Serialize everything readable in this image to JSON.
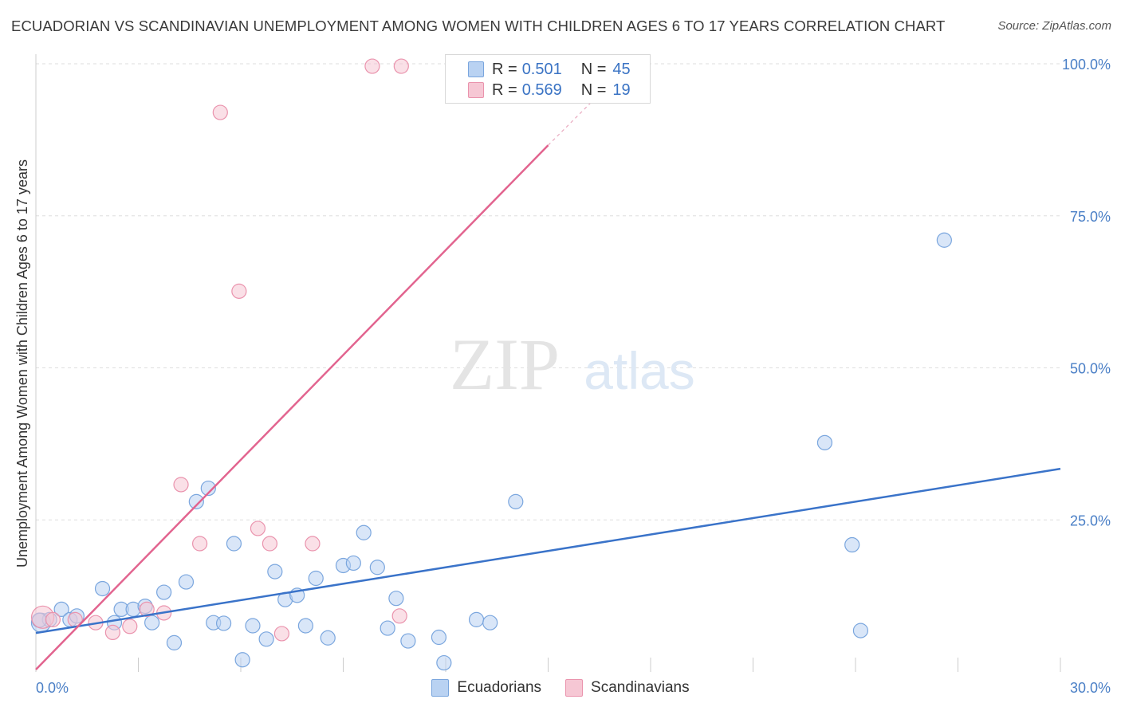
{
  "header": {
    "title": "ECUADORIAN VS SCANDINAVIAN UNEMPLOYMENT AMONG WOMEN WITH CHILDREN AGES 6 TO 17 YEARS CORRELATION CHART",
    "source": "Source: ZipAtlas.com"
  },
  "watermark": {
    "zip": "ZIP",
    "atlas": "atlas"
  },
  "colors": {
    "blue_fill": "#b9d2f2",
    "blue_stroke": "#7aa6de",
    "blue_line": "#3a73c9",
    "pink_fill": "#f6c7d4",
    "pink_stroke": "#ea93ad",
    "pink_line": "#e2648f",
    "grid": "#dedede",
    "axis_text": "#4a7fc6"
  },
  "legend": {
    "r_label": "R =",
    "n_label": "N =",
    "rows": [
      {
        "r": "0.501",
        "n": "45"
      },
      {
        "r": "0.569",
        "n": "19"
      }
    ]
  },
  "chart_data": {
    "type": "scatter",
    "title": "ECUADORIAN VS SCANDINAVIAN UNEMPLOYMENT AMONG WOMEN WITH CHILDREN AGES 6 TO 17 YEARS CORRELATION CHART",
    "xlabel": "",
    "ylabel": "Unemployment Among Women with Children Ages 6 to 17 years",
    "xlim": [
      0,
      30
    ],
    "ylim": [
      0,
      100
    ],
    "x_tick_labels": [
      "0.0%",
      "30.0%"
    ],
    "y_ticks": [
      25,
      50,
      75,
      100
    ],
    "y_tick_labels": [
      "25.0%",
      "50.0%",
      "75.0%",
      "100.0%"
    ],
    "legend_position": "top-center",
    "series": [
      {
        "name": "Ecuadorians",
        "r": 0.501,
        "n": 45,
        "trend": {
          "x0": 0,
          "y0": 6.4,
          "x1": 30,
          "y1": 33.4
        },
        "points": [
          [
            0.15,
            8.1
          ],
          [
            0.4,
            8.6
          ],
          [
            0.75,
            10.3
          ],
          [
            1.0,
            8.6
          ],
          [
            1.2,
            9.2
          ],
          [
            1.95,
            13.7
          ],
          [
            2.3,
            8.1
          ],
          [
            2.5,
            10.3
          ],
          [
            2.85,
            10.3
          ],
          [
            3.2,
            10.8
          ],
          [
            3.4,
            8.1
          ],
          [
            3.75,
            13.1
          ],
          [
            4.05,
            4.8
          ],
          [
            4.4,
            14.8
          ],
          [
            4.7,
            28.0
          ],
          [
            5.05,
            30.2
          ],
          [
            5.2,
            8.1
          ],
          [
            5.5,
            8.0
          ],
          [
            5.8,
            21.1
          ],
          [
            6.05,
            2.0
          ],
          [
            6.35,
            7.6
          ],
          [
            6.75,
            5.4
          ],
          [
            7.0,
            16.5
          ],
          [
            7.3,
            11.9
          ],
          [
            7.65,
            12.6
          ],
          [
            7.9,
            7.6
          ],
          [
            8.2,
            15.4
          ],
          [
            8.55,
            5.6
          ],
          [
            9.0,
            17.5
          ],
          [
            9.3,
            17.9
          ],
          [
            9.6,
            22.9
          ],
          [
            10.0,
            17.2
          ],
          [
            10.3,
            7.2
          ],
          [
            10.55,
            12.1
          ],
          [
            10.9,
            5.1
          ],
          [
            11.8,
            5.7
          ],
          [
            11.95,
            1.5
          ],
          [
            12.9,
            8.6
          ],
          [
            13.3,
            8.1
          ],
          [
            14.05,
            28.0
          ],
          [
            23.1,
            37.7
          ],
          [
            23.9,
            20.9
          ],
          [
            24.15,
            6.8
          ],
          [
            26.6,
            71.0
          ],
          [
            0.1,
            8.5
          ]
        ],
        "point_radius": [
          12,
          9,
          9,
          9,
          9,
          9,
          9,
          9,
          9,
          9,
          9,
          9,
          9,
          9,
          9,
          9,
          9,
          9,
          9,
          9,
          9,
          9,
          9,
          9,
          9,
          9,
          9,
          9,
          9,
          9,
          9,
          9,
          9,
          9,
          9,
          9,
          9,
          9,
          9,
          9,
          9,
          9,
          9,
          9,
          9
        ]
      },
      {
        "name": "Scandinavians",
        "r": 0.569,
        "n": 19,
        "trend": {
          "x0": 0,
          "y0": 0.4,
          "x1": 15,
          "y1": 86.6,
          "dash_to_x": 16.5,
          "dash_to_y": 95.0
        },
        "points": [
          [
            0.2,
            9.0
          ],
          [
            0.5,
            8.6
          ],
          [
            1.15,
            8.6
          ],
          [
            1.75,
            8.1
          ],
          [
            2.25,
            6.5
          ],
          [
            2.75,
            7.5
          ],
          [
            3.25,
            10.3
          ],
          [
            3.75,
            9.7
          ],
          [
            4.25,
            30.8
          ],
          [
            4.8,
            21.1
          ],
          [
            5.4,
            92.0
          ],
          [
            5.95,
            62.6
          ],
          [
            6.5,
            23.6
          ],
          [
            6.85,
            21.1
          ],
          [
            7.2,
            6.3
          ],
          [
            8.1,
            21.1
          ],
          [
            9.85,
            99.6
          ],
          [
            10.65,
            9.2
          ],
          [
            10.7,
            99.6
          ]
        ],
        "point_radius": [
          14,
          9,
          9,
          9,
          9,
          9,
          9,
          9,
          9,
          9,
          9,
          9,
          9,
          9,
          9,
          9,
          9,
          9,
          9
        ]
      }
    ]
  }
}
